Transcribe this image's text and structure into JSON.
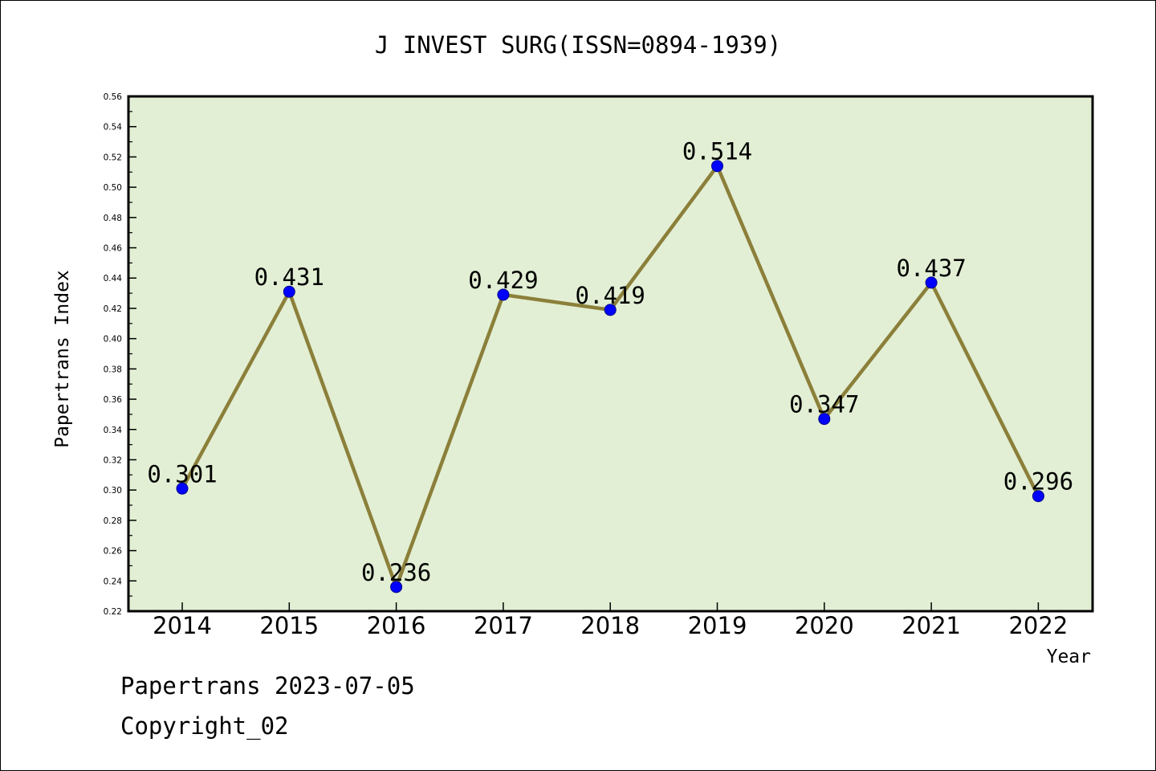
{
  "chart_data": {
    "type": "line",
    "title": "J INVEST SURG(ISSN=0894-1939)",
    "xlabel": "Year",
    "ylabel": "Papertrans Index",
    "categories": [
      "2014",
      "2015",
      "2016",
      "2017",
      "2018",
      "2019",
      "2020",
      "2021",
      "2022"
    ],
    "series": [
      {
        "values": [
          0.301,
          0.431,
          0.236,
          0.429,
          0.419,
          0.514,
          0.347,
          0.437,
          0.296
        ],
        "point_labels": [
          "0.301",
          "0.431",
          "0.236",
          "0.429",
          "0.419",
          "0.514",
          "0.347",
          "0.437",
          "0.296"
        ]
      }
    ],
    "ylim": [
      0.22,
      0.56
    ],
    "yticks": [
      "0.22",
      "0.24",
      "0.26",
      "0.28",
      "0.30",
      "0.32",
      "0.34",
      "0.36",
      "0.38",
      "0.40",
      "0.42",
      "0.44",
      "0.46",
      "0.48",
      "0.50",
      "0.52",
      "0.54",
      "0.56"
    ],
    "grid": false,
    "legend": "none",
    "colors": {
      "plot_background": "#e2efd4",
      "line": "#8b7f3a",
      "marker": "#0000ff"
    }
  },
  "footer": {
    "line1": "Papertrans 2023-07-05",
    "line2": "Copyright_02"
  }
}
